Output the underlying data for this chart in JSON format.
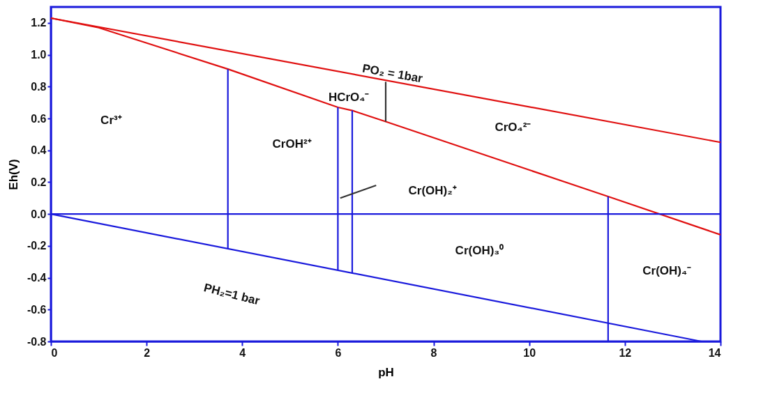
{
  "chart_data": {
    "type": "line",
    "xlabel": "pH",
    "ylabel": "Eh(V)",
    "xlim": [
      0,
      14
    ],
    "xticks": [
      0,
      2,
      4,
      6,
      8,
      10,
      12,
      14
    ],
    "ylim": [
      -0.8,
      1.3
    ],
    "yticks": [
      {
        "value": -0.8,
        "label": "-0.8"
      },
      {
        "value": -0.6,
        "label": "-0.6"
      },
      {
        "value": -0.4,
        "label": "-0.4"
      },
      {
        "value": -0.2,
        "label": "-0.2"
      },
      {
        "value": 0,
        "label": "0.0"
      },
      {
        "value": 0.2,
        "label": "0.2"
      },
      {
        "value": 0.4,
        "label": "0.4"
      },
      {
        "value": 0.6,
        "label": "0.6"
      },
      {
        "value": 0.8,
        "label": "0.8"
      },
      {
        "value": 1.0,
        "label": "1.0"
      },
      {
        "value": 1.2,
        "label": "1.2"
      }
    ],
    "grid": false,
    "marker": "none",
    "line_style": "solid",
    "series": [
      {
        "color": "#e01010",
        "x": [
          0,
          14
        ],
        "values": [
          1.23,
          0.45
        ]
      },
      {
        "color": "#e01010",
        "x": [
          0,
          1,
          3.7,
          6,
          6.3,
          7,
          11.65,
          14
        ],
        "values": [
          1.23,
          1.17,
          0.91,
          0.67,
          0.65,
          0.58,
          0.11,
          -0.13
        ]
      },
      {
        "color": "#1a1adc",
        "x": [
          0,
          13.6
        ],
        "values": [
          0,
          -0.8
        ]
      },
      {
        "color": "#1a1adc",
        "x": [
          0,
          14
        ],
        "values": [
          0,
          0
        ]
      },
      {
        "color": "#1a1adc",
        "x": [
          3.7,
          3.7
        ],
        "values": [
          -0.22,
          0.91
        ]
      },
      {
        "color": "#1a1adc",
        "x": [
          6.0,
          6.0
        ],
        "values": [
          -0.35,
          0.67
        ]
      },
      {
        "color": "#1a1adc",
        "x": [
          6.3,
          6.3
        ],
        "values": [
          -0.37,
          0.65
        ]
      },
      {
        "color": "#1a1adc",
        "x": [
          11.65,
          11.65
        ],
        "values": [
          -0.8,
          0.11
        ]
      },
      {
        "color": "#333333",
        "x": [
          7,
          7
        ],
        "values": [
          0.58,
          0.83
        ]
      },
      {
        "color": "#333333",
        "x": [
          6.05,
          6.8
        ],
        "values": [
          0.1,
          0.18
        ]
      }
    ],
    "annotations": [
      "Cr³⁺",
      "CrOH²⁺",
      "HCrO₄⁻",
      "CrO₄²⁻",
      "Cr(OH)₂⁺",
      "Cr(OH)₃⁰",
      "Cr(OH)₄⁻",
      "PO₂ = 1bar",
      "PH₂=1 bar"
    ]
  }
}
